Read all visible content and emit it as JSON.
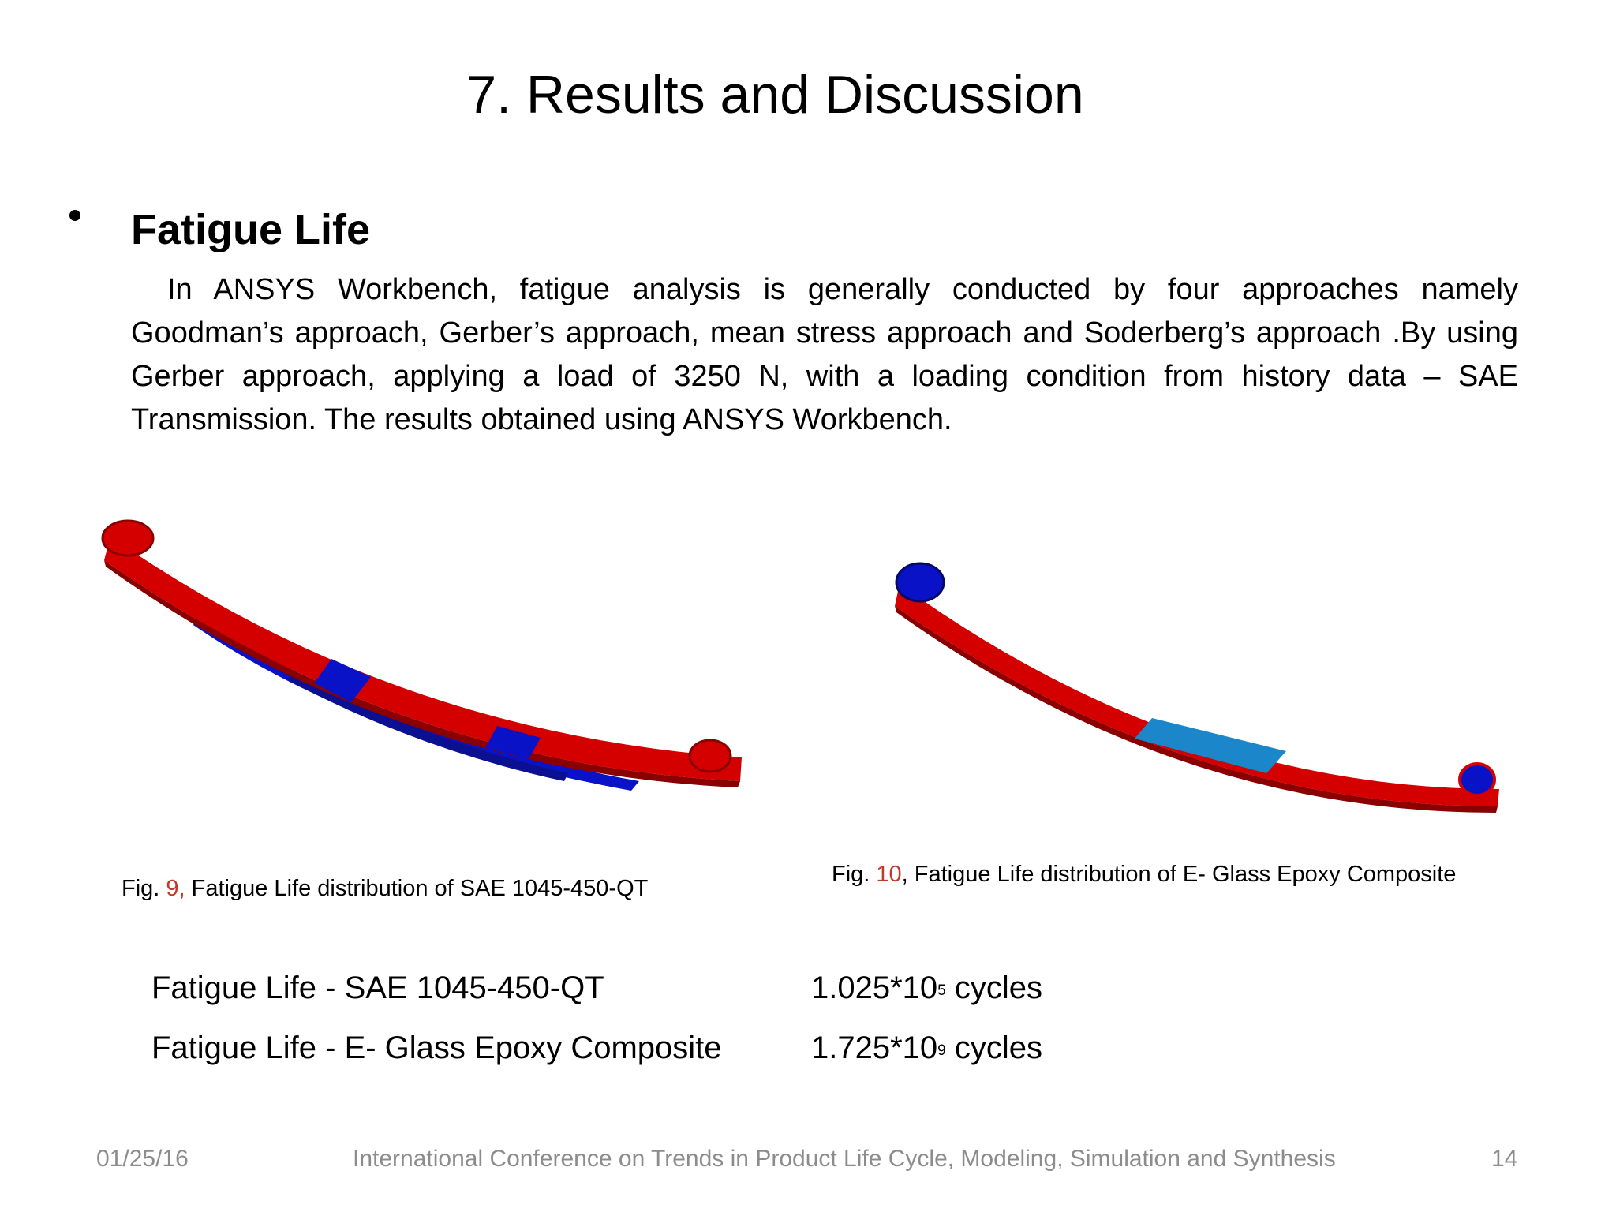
{
  "slide": {
    "title": "7. Results and Discussion",
    "bullet_heading": "Fatigue Life",
    "paragraph": "In ANSYS Workbench, fatigue analysis is generally conducted by four approaches namely Goodman’s approach, Gerber’s approach, mean stress approach and Soderberg’s approach .By using Gerber approach, applying a load of 3250 N, with a loading condition from history data – SAE Transmission. The results obtained using ANSYS Workbench."
  },
  "figures": [
    {
      "caption_prefix": "Fig. ",
      "number": "9,",
      "caption_text": "  Fatigue Life distribution of SAE 1045-450-QT"
    },
    {
      "caption_prefix": "Fig. ",
      "number": "10",
      "caption_text": ",  Fatigue Life distribution of E- Glass Epoxy Composite"
    }
  ],
  "results": [
    {
      "label": "Fatigue Life - SAE 1045-450-QT",
      "mantissa": "1.025*10",
      "exponent": "5",
      "unit": " cycles"
    },
    {
      "label": "Fatigue Life - E- Glass Epoxy Composite",
      "mantissa": "1.725*10",
      "exponent": "9",
      "unit": " cycles"
    }
  ],
  "footer": {
    "date": "01/25/16",
    "conference": "International Conference on Trends  in Product Life Cycle, Modeling, Simulation and Synthesis",
    "page": "14"
  },
  "colors": {
    "spring_red": "#d40000",
    "spring_blue": "#0a12c8",
    "spring_cyan": "#1b86c9",
    "caption_number": "#c0392b",
    "footer_text": "#8c8c8c"
  }
}
